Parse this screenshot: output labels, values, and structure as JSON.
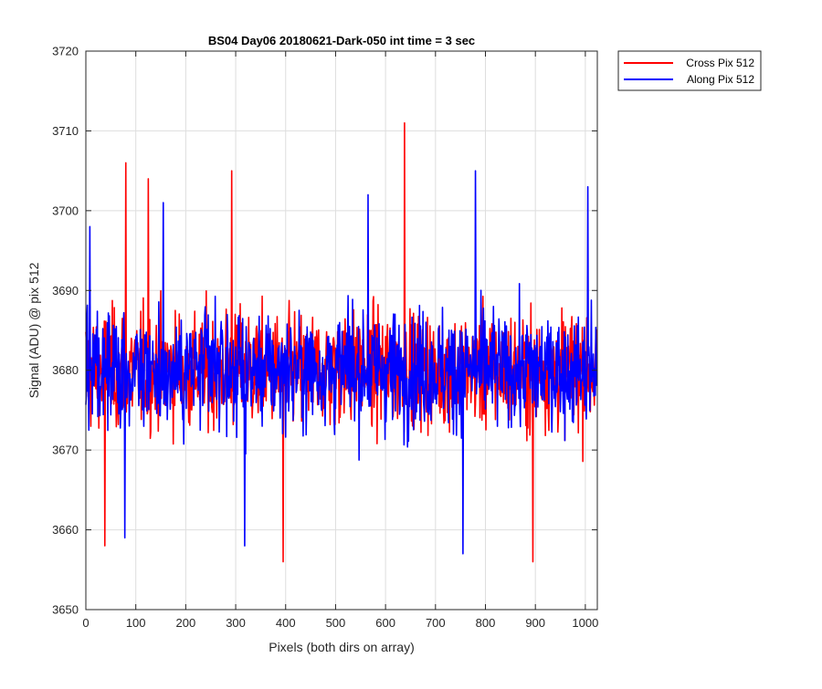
{
  "chart_data": {
    "type": "line",
    "title": "BS04 Day06 20180621-Dark-050 int time = 3 sec",
    "xlabel": "Pixels (both dirs on array)",
    "ylabel": "Signal (ADU) @ pix 512",
    "xlim": [
      0,
      1024
    ],
    "ylim": [
      3650,
      3720
    ],
    "xticks": [
      0,
      100,
      200,
      300,
      400,
      500,
      600,
      700,
      800,
      900,
      1000
    ],
    "yticks": [
      3650,
      3660,
      3670,
      3680,
      3690,
      3700,
      3710,
      3720
    ],
    "grid": true,
    "legend_position": "outside-top-right",
    "series": [
      {
        "name": "Cross Pix 512",
        "color": "#ff0000",
        "n_points": 1024,
        "mean": 3680,
        "noise_sd": 6,
        "extremes": [
          {
            "x": 38,
            "y": 3658
          },
          {
            "x": 80,
            "y": 3706
          },
          {
            "x": 125,
            "y": 3704
          },
          {
            "x": 292,
            "y": 3705
          },
          {
            "x": 395,
            "y": 3656
          },
          {
            "x": 638,
            "y": 3711
          },
          {
            "x": 895,
            "y": 3656
          }
        ]
      },
      {
        "name": "Along Pix 512",
        "color": "#0000ff",
        "n_points": 1024,
        "mean": 3680,
        "noise_sd": 6,
        "extremes": [
          {
            "x": 8,
            "y": 3698
          },
          {
            "x": 78,
            "y": 3659
          },
          {
            "x": 155,
            "y": 3701
          },
          {
            "x": 318,
            "y": 3658
          },
          {
            "x": 565,
            "y": 3702
          },
          {
            "x": 755,
            "y": 3657
          },
          {
            "x": 780,
            "y": 3705
          },
          {
            "x": 1005,
            "y": 3703
          }
        ]
      }
    ]
  }
}
